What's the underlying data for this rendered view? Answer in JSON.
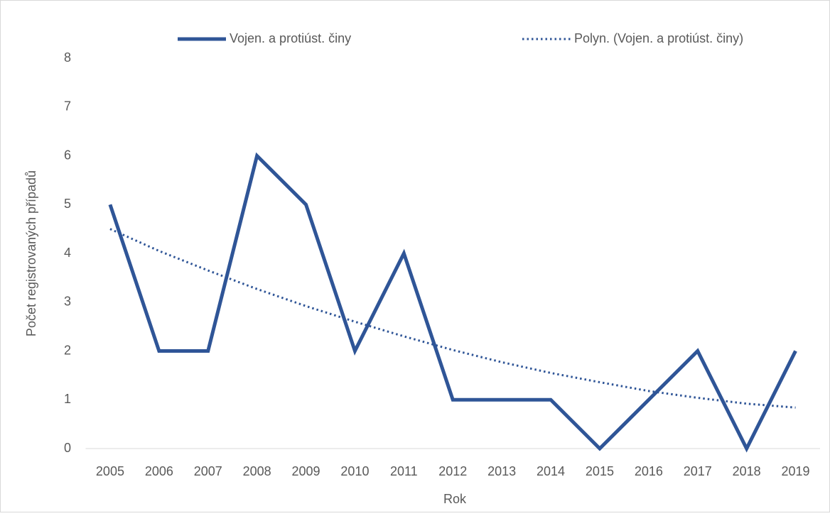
{
  "chart_data": {
    "type": "line",
    "x_label": "Rok",
    "y_label": "Počet registrovaných případů",
    "categories": [
      "2005",
      "2006",
      "2007",
      "2008",
      "2009",
      "2010",
      "2011",
      "2012",
      "2013",
      "2014",
      "2015",
      "2016",
      "2017",
      "2018",
      "2019"
    ],
    "series": [
      {
        "name": "Vojen. a protiúst. činy",
        "color": "#2f5597",
        "style": "solid",
        "values": [
          5,
          2,
          2,
          6,
          5,
          2,
          4,
          1,
          1,
          1,
          0,
          1,
          2,
          0,
          2
        ]
      },
      {
        "name": "Polyn. (Vojen. a protiúst. činy)",
        "color": "#2f5597",
        "style": "dotted",
        "values": [
          4.5,
          4.05,
          3.65,
          3.27,
          2.92,
          2.6,
          2.3,
          2.02,
          1.77,
          1.55,
          1.36,
          1.18,
          1.04,
          0.92,
          0.84
        ]
      }
    ],
    "ylim": [
      0,
      8
    ],
    "yticks": [
      0,
      1,
      2,
      3,
      4,
      5,
      6,
      7,
      8
    ],
    "grid": false,
    "legend": "top"
  }
}
